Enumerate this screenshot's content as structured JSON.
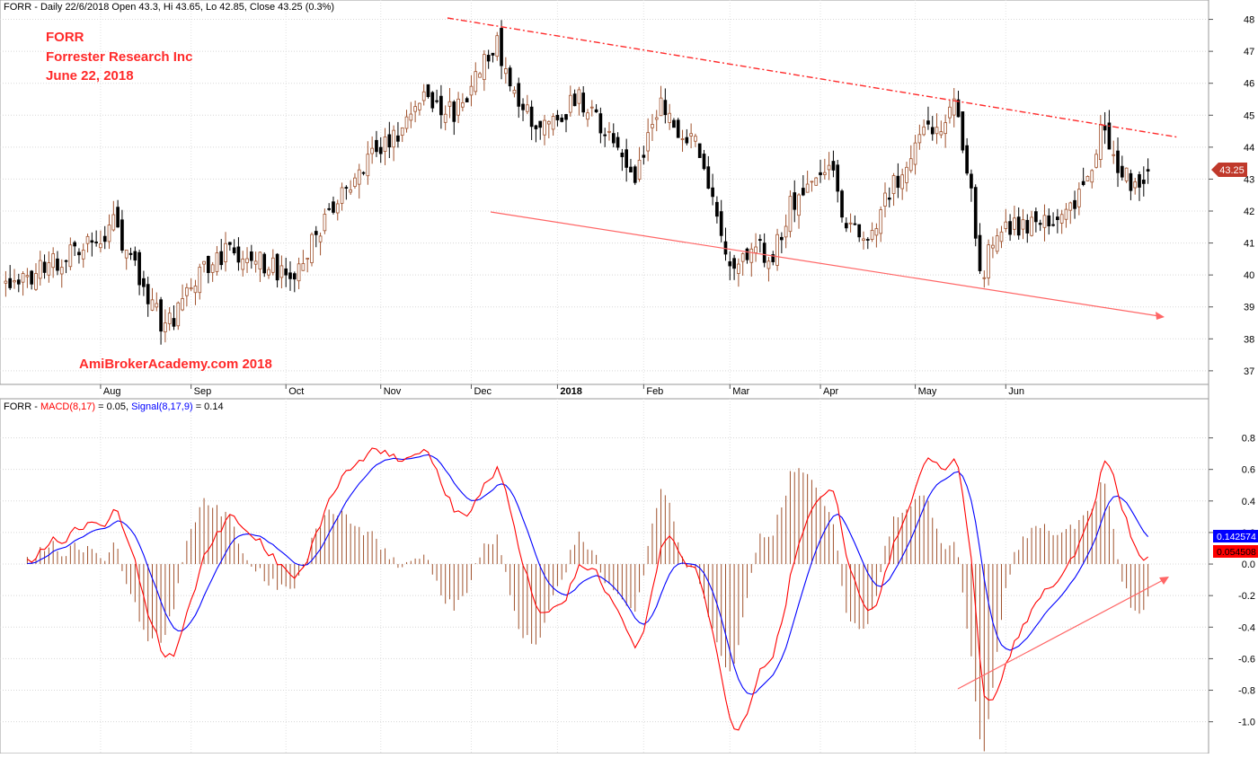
{
  "header": {
    "price_title": "FORR - Daily 22/6/2018 Open 43.3, Hi 43.65, Lo 42.85, Close 43.25 (0.3%)",
    "macd_title_prefix": "FORR - ",
    "macd_title_macd": "MACD(8,17)",
    "macd_title_macd_val": " = 0.05, ",
    "macd_title_signal": "Signal(8,17,9)",
    "macd_title_signal_val": " = 0.14"
  },
  "annotations": {
    "ticker": "FORR",
    "company": "Forrester Research Inc",
    "date": "June 22, 2018",
    "watermark": "AmiBrokerAcademy.com  2018"
  },
  "colors": {
    "up_candle": "#a0522d",
    "down_candle": "#000000",
    "macd_line": "#ff0000",
    "signal_line": "#0000ff",
    "histogram": "#a0522d",
    "trendline": "#ff0000",
    "last_price_badge": "#c0392b"
  },
  "chart_data": [
    {
      "type": "candlestick",
      "series_name": "FORR",
      "x_labels": [
        "Aug",
        "Sep",
        "Oct",
        "Nov",
        "Dec",
        "2018",
        "Feb",
        "Mar",
        "Apr",
        "May",
        "Jun"
      ],
      "y_ticks": [
        37,
        38,
        39,
        40,
        41,
        42,
        43,
        44,
        45,
        46,
        47,
        48
      ],
      "ylim": [
        36.8,
        48.1
      ],
      "last_price_label": "43.25",
      "last_price": 43.25,
      "ohlc_knots": [
        [
          0,
          39.6
        ],
        [
          8,
          40.2
        ],
        [
          20,
          41.0
        ],
        [
          25,
          41.6
        ],
        [
          32,
          39.6
        ],
        [
          37,
          38.2
        ],
        [
          43,
          39.8
        ],
        [
          52,
          40.8
        ],
        [
          62,
          40.3
        ],
        [
          66,
          39.7
        ],
        [
          72,
          41.2
        ],
        [
          80,
          43.0
        ],
        [
          88,
          44.0
        ],
        [
          97,
          45.6
        ],
        [
          104,
          45.0
        ],
        [
          111,
          46.7
        ],
        [
          114,
          47.3
        ],
        [
          118,
          45.6
        ],
        [
          125,
          44.5
        ],
        [
          133,
          45.6
        ],
        [
          140,
          44.3
        ],
        [
          146,
          43.0
        ],
        [
          152,
          45.5
        ],
        [
          156,
          44.6
        ],
        [
          160,
          44.2
        ],
        [
          164,
          42.6
        ],
        [
          168,
          40.2
        ],
        [
          174,
          41.0
        ],
        [
          177,
          40.3
        ],
        [
          182,
          42.2
        ],
        [
          188,
          43.1
        ],
        [
          192,
          43.2
        ],
        [
          195,
          41.5
        ],
        [
          200,
          41.2
        ],
        [
          206,
          42.8
        ],
        [
          212,
          44.5
        ],
        [
          217,
          44.7
        ],
        [
          220,
          45.5
        ],
        [
          224,
          42.8
        ],
        [
          226,
          39.8
        ],
        [
          230,
          41.5
        ],
        [
          236,
          41.6
        ],
        [
          245,
          42.0
        ],
        [
          250,
          42.5
        ],
        [
          254,
          44.6
        ],
        [
          258,
          43.2
        ],
        [
          262,
          42.8
        ],
        [
          265,
          43.25
        ]
      ],
      "candles_shown": 266
    },
    {
      "type": "line",
      "title": "MACD(8,17) / Signal(8,17,9)",
      "y_ticks": [
        -1.0,
        -0.8,
        -0.6,
        -0.4,
        -0.2,
        0.0,
        0.2,
        0.4,
        0.6,
        0.8
      ],
      "ylim": [
        -1.15,
        0.9
      ],
      "series": [
        {
          "name": "MACD(8,17)",
          "last_value": 0.05,
          "badge_label": "0.054508"
        },
        {
          "name": "Signal(8,17,9)",
          "last_value": 0.14,
          "badge_label": "0.142574"
        }
      ]
    }
  ]
}
